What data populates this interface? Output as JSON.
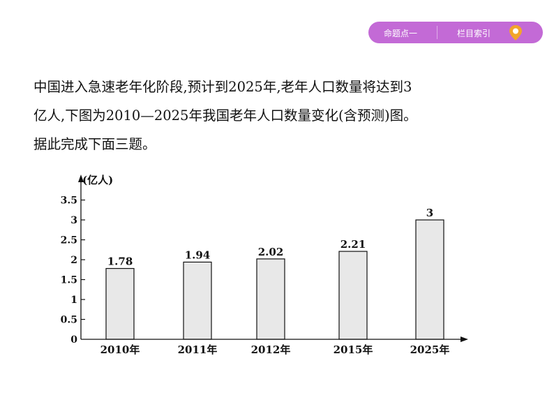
{
  "nav": {
    "tab1_label": "命题点一",
    "tab2_label": "栏目索引",
    "accent_color": "#c36ad6",
    "icon": "location-pin-icon"
  },
  "intro": {
    "line1": "中国进入急速老年化阶段,预计到2025年,老年人口数量将达到3",
    "line2": "亿人,下图为2010—2025年我国老年人口数量变化(含预测)图。",
    "line3": "据此完成下面三题。"
  },
  "chart_data": {
    "type": "bar",
    "categories": [
      "2010年",
      "2011年",
      "2012年",
      "2015年",
      "2025年"
    ],
    "values": [
      1.78,
      1.94,
      2.02,
      2.21,
      3
    ],
    "value_labels": [
      "1.78",
      "1.94",
      "2.02",
      "2.21",
      "3"
    ],
    "ylabel": "(亿人)",
    "yticks": [
      "0",
      "0.5",
      "1",
      "1.5",
      "2",
      "2.5",
      "3",
      "3.5"
    ],
    "ylim": [
      0,
      3.5
    ],
    "grid": false,
    "bar_color": "#e8e8e8"
  }
}
